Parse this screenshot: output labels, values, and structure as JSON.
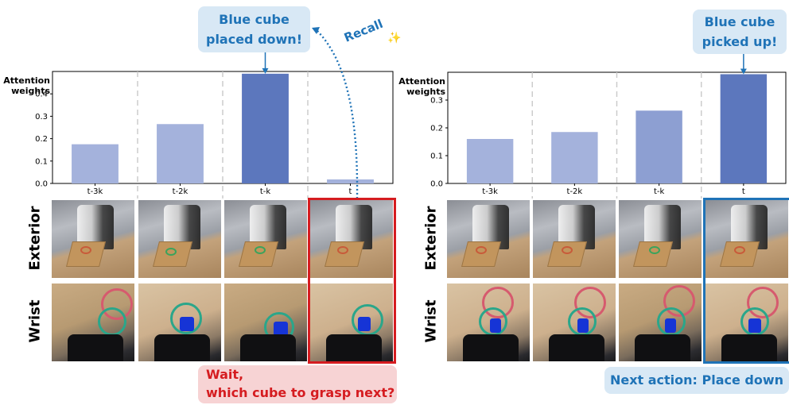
{
  "colors": {
    "accent_blue": "#1f73b7",
    "callout_blue_bg": "#d8e8f5",
    "accent_red": "#d51c20",
    "callout_red_bg": "#f7d3d4",
    "bar_light": "#a4b2dc",
    "bar_dark": "#5c77bd"
  },
  "left_panel": {
    "top_callout": "Blue cube\nplaced down!",
    "recall_label": "Recall",
    "sparkle_icon": "sparkle-icon",
    "bottom_callout": "Wait,\nwhich cube to grasp next?",
    "row_labels": [
      "Exterior",
      "Wrist"
    ]
  },
  "right_panel": {
    "top_callout": "Blue cube\npicked up!",
    "bottom_callout": "Next action: Place down",
    "row_labels": [
      "Exterior",
      "Wrist"
    ]
  },
  "chart_data": [
    {
      "type": "bar",
      "ylabel": "Attention\nweights",
      "categories": [
        "t-3k",
        "t-2k",
        "t-k",
        "t"
      ],
      "values": [
        0.175,
        0.265,
        0.49,
        0.018
      ],
      "highlight_index": 2,
      "ylim": [
        0,
        0.5
      ],
      "yticks": [
        "0.0",
        "0.1",
        "0.2",
        "0.3",
        "0.4"
      ],
      "grid": false
    },
    {
      "type": "bar",
      "ylabel": "Attention\nweights",
      "categories": [
        "t-3k",
        "t-2k",
        "t-k",
        "t"
      ],
      "values": [
        0.16,
        0.185,
        0.262,
        0.393
      ],
      "highlight_index": 3,
      "ylim": [
        0,
        0.4
      ],
      "yticks": [
        "0.0",
        "0.1",
        "0.2",
        "0.3"
      ],
      "grid": false
    }
  ]
}
